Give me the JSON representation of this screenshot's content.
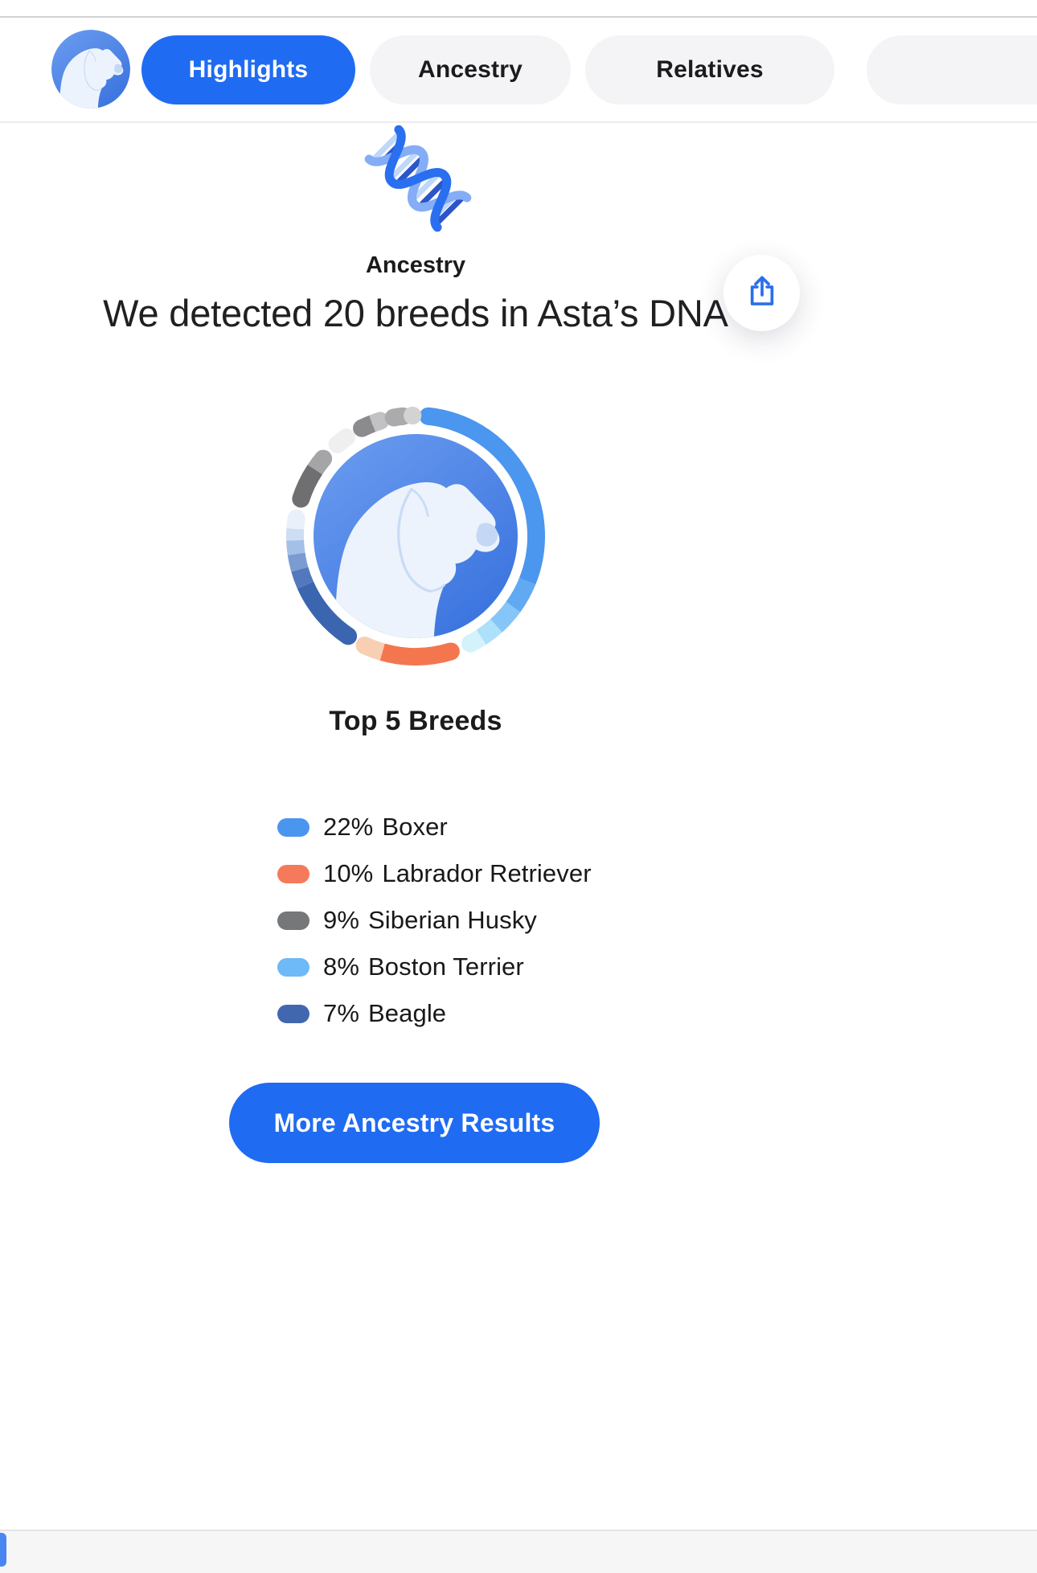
{
  "accent_color": "#1F6CF3",
  "nav": {
    "tabs": [
      {
        "label": "Highlights",
        "active": true
      },
      {
        "label": "Ancestry",
        "active": false
      },
      {
        "label": "Relatives",
        "active": false
      },
      {
        "label": "",
        "active": false
      }
    ]
  },
  "hero": {
    "section_label": "Ancestry",
    "headline": "We detected 20 breeds in Asta’s DNA"
  },
  "top_breeds": {
    "title": "Top 5 Breeds",
    "items": [
      {
        "pct": "22%",
        "breed": "Boxer",
        "color": "#4A96EE"
      },
      {
        "pct": "10%",
        "breed": "Labrador Retriever",
        "color": "#F47A5B"
      },
      {
        "pct": "9%",
        "breed": "Siberian Husky",
        "color": "#757779"
      },
      {
        "pct": "8%",
        "breed": "Boston Terrier",
        "color": "#6EB9F7"
      },
      {
        "pct": "7%",
        "breed": "Beagle",
        "color": "#4168AF"
      }
    ]
  },
  "cta": {
    "label": "More Ancestry Results"
  },
  "chart_data": {
    "type": "donut",
    "title": "Top 5 Breeds",
    "dog_name": "Asta",
    "total_breeds_detected": 20,
    "series": [
      {
        "name": "Boxer",
        "value": 22
      },
      {
        "name": "Labrador Retriever",
        "value": 10
      },
      {
        "name": "Siberian Husky",
        "value": 9
      },
      {
        "name": "Boston Terrier",
        "value": 8
      },
      {
        "name": "Beagle",
        "value": 7
      }
    ],
    "ring_segments": [
      {
        "s": 6,
        "e": 112,
        "c": "#4B96EE",
        "cs": true
      },
      {
        "s": 112,
        "e": 126,
        "c": "#61A9F2"
      },
      {
        "s": 126,
        "e": 138,
        "c": "#85C5F7"
      },
      {
        "s": 138,
        "e": 147,
        "c": "#ADE0F9"
      },
      {
        "s": 147,
        "e": 153,
        "c": "#D3F2FB",
        "ce": true
      },
      {
        "s": 163,
        "e": 196,
        "c": "#F4764E",
        "cs": true
      },
      {
        "s": 196,
        "e": 205,
        "c": "#F8CFB2",
        "ce": true
      },
      {
        "s": 214,
        "e": 246,
        "c": "#3B66AF",
        "cs": true
      },
      {
        "s": 246,
        "e": 254,
        "c": "#5378BD"
      },
      {
        "s": 254,
        "e": 261.5,
        "c": "#7B9BD3"
      },
      {
        "s": 261.5,
        "e": 268,
        "c": "#A4C0E8"
      },
      {
        "s": 268,
        "e": 273.5,
        "c": "#CCDDF4"
      },
      {
        "s": 273.5,
        "e": 278.5,
        "c": "#E9F0FA",
        "ce": true
      },
      {
        "s": 288,
        "e": 303.5,
        "c": "#6F6F71",
        "cs": true
      },
      {
        "s": 303.5,
        "e": 310,
        "c": "#A5A5A7",
        "ce": true
      },
      {
        "s": 319.5,
        "e": 325,
        "c": "#EFEFF0",
        "cs": true,
        "ce": true
      },
      {
        "s": 333.5,
        "e": 339,
        "c": "#8B8B8D",
        "cs": true
      },
      {
        "s": 339,
        "e": 343,
        "c": "#C2C2C4",
        "ce": true
      },
      {
        "s": 349.5,
        "e": 354,
        "c": "#ABABAD",
        "cs": true,
        "ce": true
      },
      {
        "s": 358.5,
        "e": 358.6,
        "c": "#D3D3D4",
        "cs": true,
        "ce": true
      }
    ]
  }
}
